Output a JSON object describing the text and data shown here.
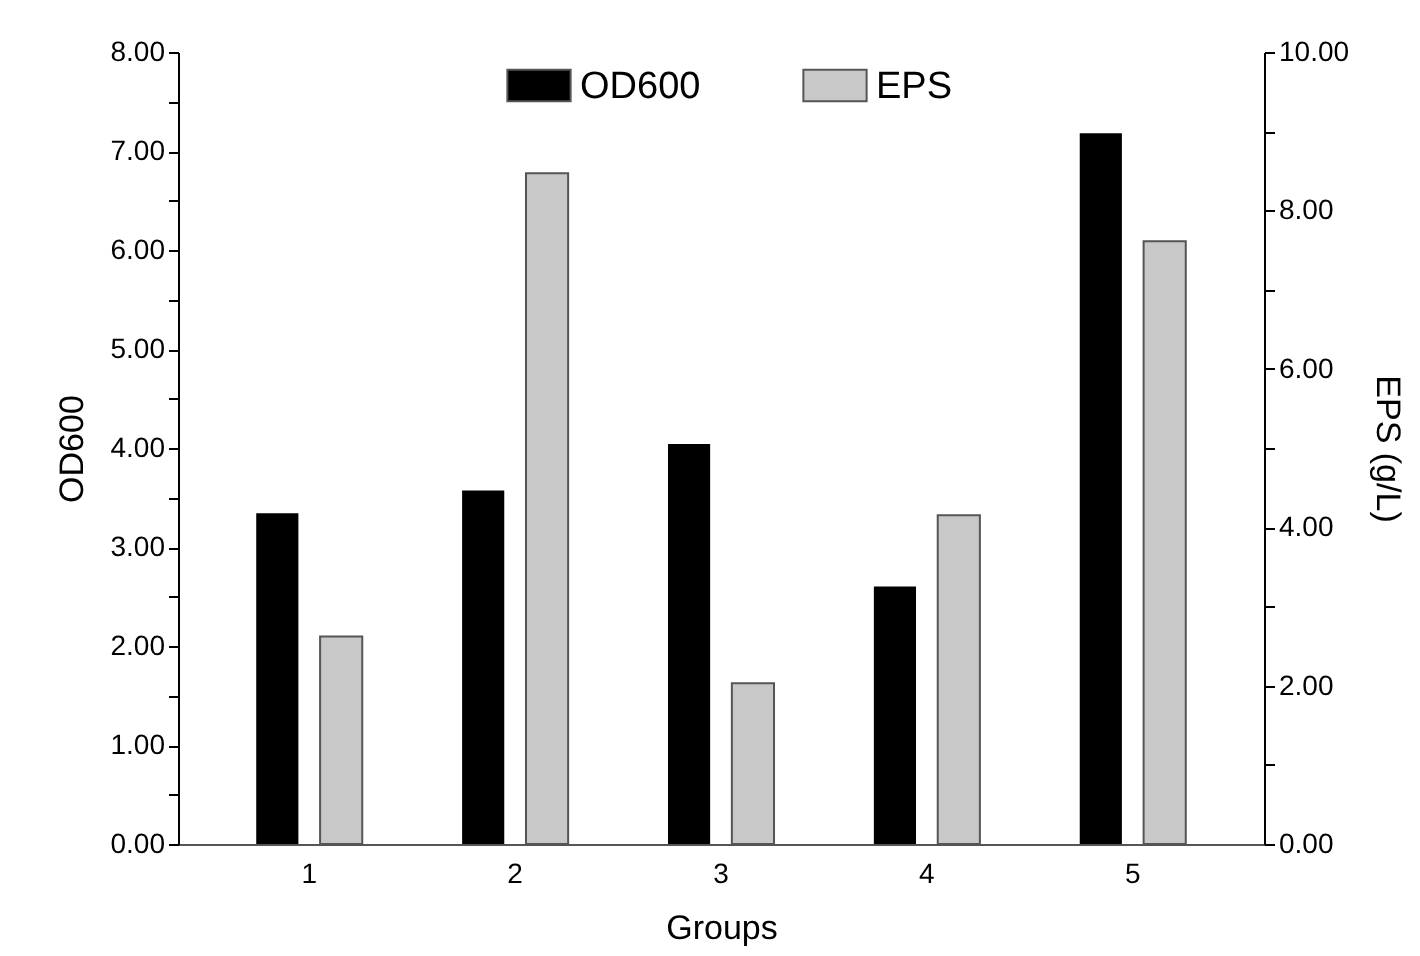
{
  "chart_data": {
    "type": "bar",
    "xlabel": "Groups",
    "ylabel": "OD600",
    "y2label": "EPS (g/L)",
    "categories": [
      "1",
      "2",
      "3",
      "4",
      "5"
    ],
    "series": [
      {
        "name": "OD600",
        "color": "#000000",
        "values": [
          3.34,
          3.57,
          4.04,
          2.6,
          7.18
        ]
      },
      {
        "name": "EPS",
        "color": "#c8c8c8",
        "axis": "y2",
        "values": [
          2.62,
          8.47,
          2.03,
          4.15,
          7.61
        ]
      }
    ],
    "ylim": [
      0,
      8
    ],
    "yticks": [
      {
        "value": 0,
        "label": "0.00"
      },
      {
        "value": 0.5,
        "label": null
      },
      {
        "value": 1,
        "label": "1.00"
      },
      {
        "value": 1.5,
        "label": null
      },
      {
        "value": 2,
        "label": "2.00"
      },
      {
        "value": 2.5,
        "label": null
      },
      {
        "value": 3,
        "label": "3.00"
      },
      {
        "value": 3.5,
        "label": null
      },
      {
        "value": 4,
        "label": "4.00"
      },
      {
        "value": 4.5,
        "label": null
      },
      {
        "value": 5,
        "label": "5.00"
      },
      {
        "value": 5.5,
        "label": null
      },
      {
        "value": 6,
        "label": "6.00"
      },
      {
        "value": 6.5,
        "label": null
      },
      {
        "value": 7,
        "label": "7.00"
      },
      {
        "value": 7.5,
        "label": null
      },
      {
        "value": 8,
        "label": "8.00"
      }
    ],
    "y2lim": [
      0,
      10
    ],
    "y2ticks": [
      {
        "value": 0,
        "label": "0.00"
      },
      {
        "value": 1,
        "label": null
      },
      {
        "value": 2,
        "label": "2.00"
      },
      {
        "value": 3,
        "label": null
      },
      {
        "value": 4,
        "label": "4.00"
      },
      {
        "value": 5,
        "label": null
      },
      {
        "value": 6,
        "label": "6.00"
      },
      {
        "value": 7,
        "label": null
      },
      {
        "value": 8,
        "label": "8.00"
      },
      {
        "value": 9,
        "label": null
      },
      {
        "value": 10,
        "label": "10.00"
      }
    ],
    "legend": "top",
    "grid": false
  }
}
